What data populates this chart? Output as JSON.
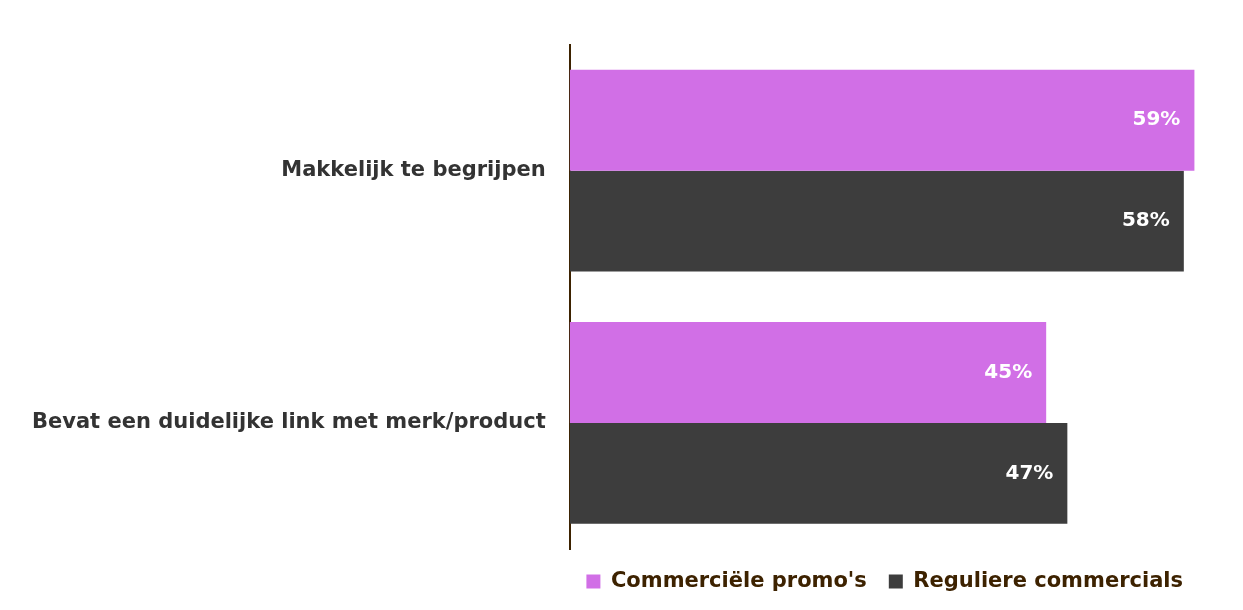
{
  "chart_data": {
    "type": "bar",
    "orientation": "horizontal",
    "categories": [
      "Makkelijk te begrijpen",
      "Bevat een duidelijke link met merk/product"
    ],
    "series": [
      {
        "name": "Commerciële promo's",
        "color": "#d16fe6",
        "values": [
          59,
          45
        ],
        "value_labels": [
          "59%",
          "45%"
        ]
      },
      {
        "name": "Reguliere commercials",
        "color": "#3d3d3d",
        "values": [
          58,
          47
        ],
        "value_labels": [
          "58%",
          "47%"
        ]
      }
    ],
    "legend": "bottom right",
    "grid": false,
    "tick_labels": "y"
  }
}
